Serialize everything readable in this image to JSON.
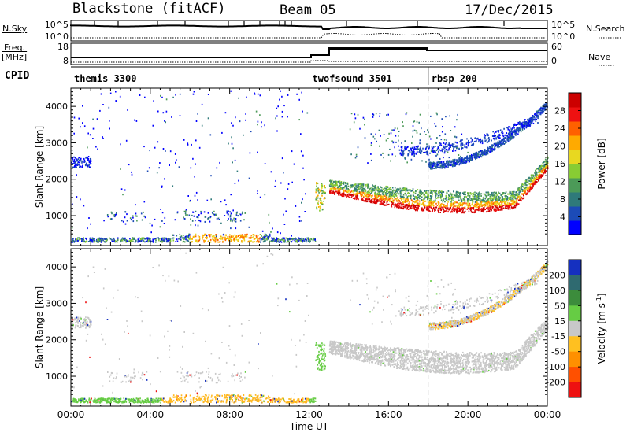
{
  "header": {
    "station": "Blackstone (fitACF)",
    "beam": "Beam 05",
    "date": "17/Dec/2015"
  },
  "left_labels": {
    "nsky": "N.Sky",
    "freq": "Freq.",
    "freq_unit": "[MHz]",
    "cpid": "CPID"
  },
  "right_labels": {
    "nsearch": "N.Search",
    "nave": "Nave"
  },
  "noise_ticks": {
    "top": "10^5",
    "bottom": "10^0"
  },
  "freq_ticks": [
    "18",
    "8"
  ],
  "nave_ticks": [
    "60",
    "0"
  ],
  "cpid_segments": [
    {
      "label": "themis 3300",
      "start_hour": 0
    },
    {
      "label": "twofsound 3501",
      "start_hour": 12
    },
    {
      "label": "rbsp 200",
      "start_hour": 18
    }
  ],
  "chart_data": [
    {
      "type": "heatmap",
      "panel": "power",
      "xlabel": "",
      "ylabel": "Slant Range [km]",
      "xlim": [
        0,
        24
      ],
      "ylim": [
        180,
        4500
      ],
      "yticks": [
        1000,
        2000,
        3000,
        4000
      ],
      "colorbar": {
        "label": "Power [dB]",
        "range": [
          0,
          32
        ],
        "ticks": [
          4,
          8,
          12,
          16,
          20,
          24,
          28
        ],
        "colors": [
          "#0000ff",
          "#1c4bb7",
          "#2f7a7a",
          "#4c9a58",
          "#88cc33",
          "#e8d820",
          "#ffaa00",
          "#ff6000",
          "#ee1111",
          "#cc0000"
        ]
      }
    },
    {
      "type": "heatmap",
      "panel": "velocity",
      "xlabel": "Time UT",
      "ylabel": "Slant Range [km]",
      "xlim": [
        0,
        24
      ],
      "ylim": [
        180,
        4500
      ],
      "yticks": [
        1000,
        2000,
        3000,
        4000
      ],
      "xticks": [
        "00:00",
        "04:00",
        "08:00",
        "12:00",
        "16:00",
        "20:00",
        "00:00"
      ],
      "colorbar": {
        "label_main": "Velocity [m s",
        "label_sup": "-1",
        "label_end": "]",
        "ticks": [
          "200",
          "100",
          "50",
          "15",
          "-15",
          "-50",
          "-100",
          "-200"
        ],
        "colors": [
          "#1530c0",
          "#2f6a70",
          "#3c8c3c",
          "#66cc44",
          "#c8c8c8",
          "#ffc020",
          "#ff9000",
          "#ff5000",
          "#ee1111"
        ]
      }
    }
  ]
}
